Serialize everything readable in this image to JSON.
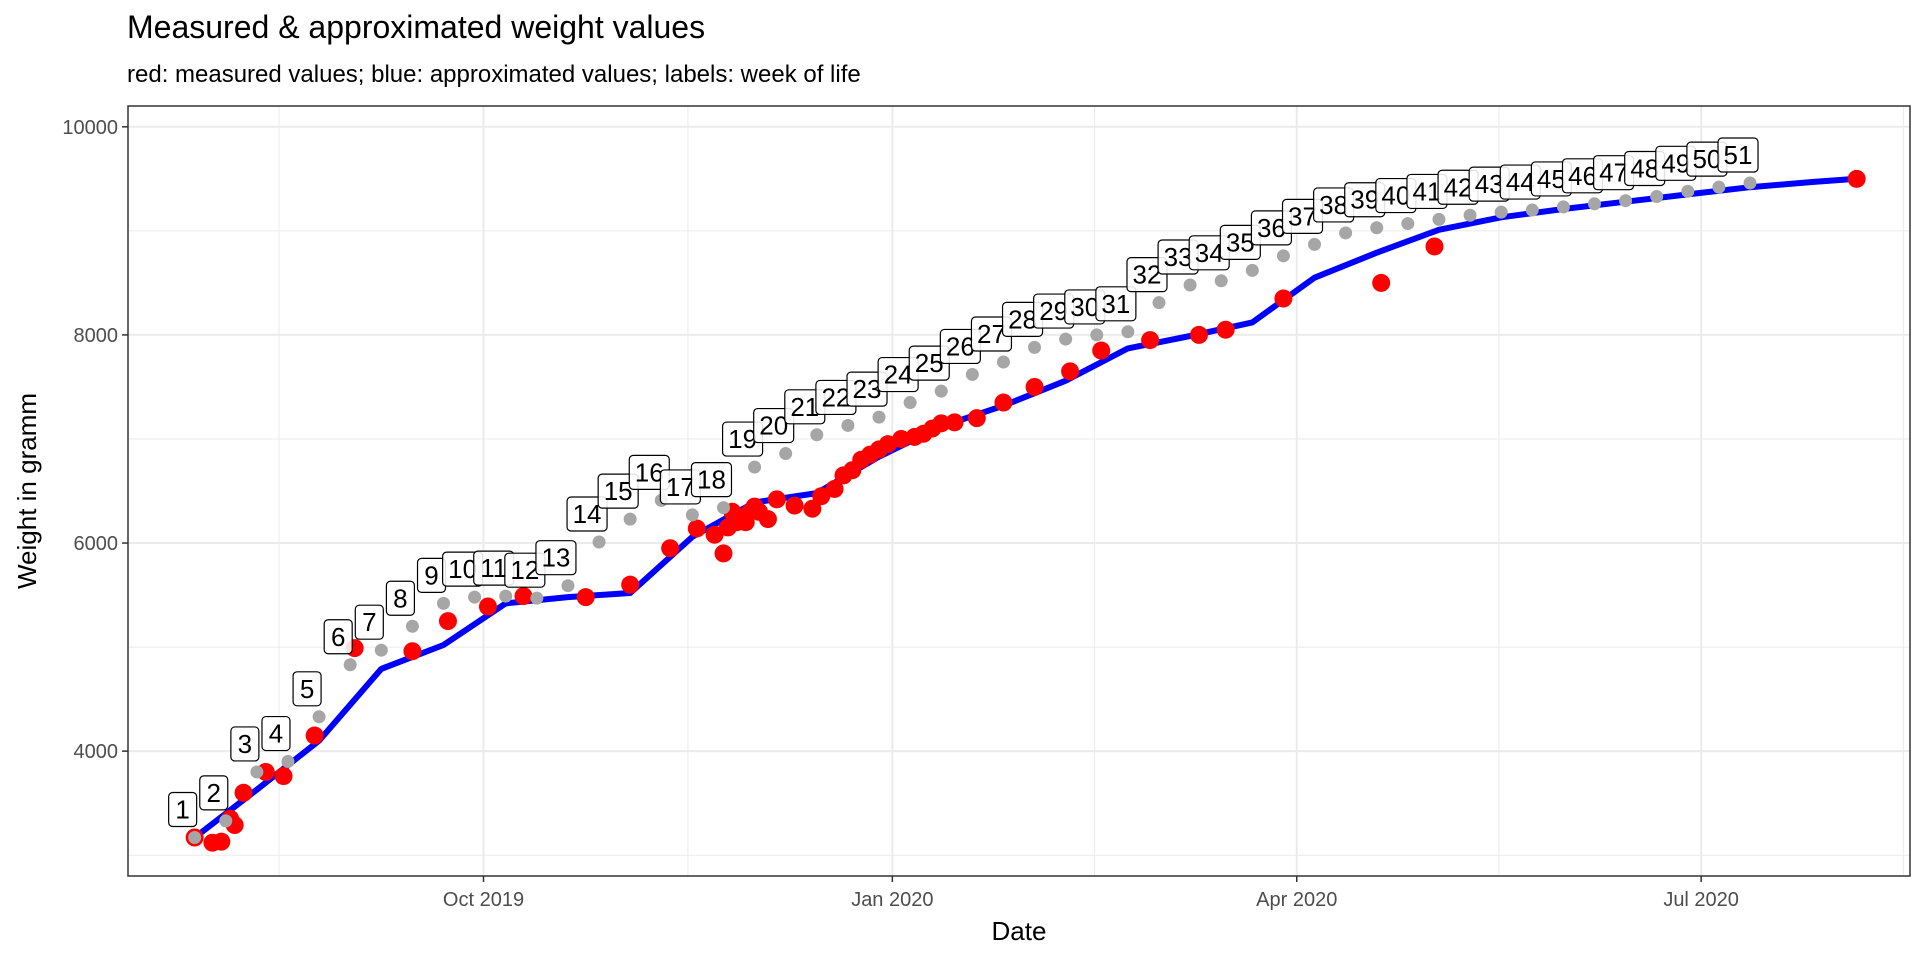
{
  "chart_data": {
    "type": "line",
    "title": "Measured & approximated weight values",
    "subtitle": "red: measured values; blue: approximated values; labels: week of life",
    "xlabel": "Date",
    "ylabel": "Weight in gramm",
    "xlim": [
      "2019-07-13",
      "2020-08-17"
    ],
    "ylim": [
      2800,
      10200
    ],
    "y_ticks": [
      4000,
      6000,
      8000,
      10000
    ],
    "x_ticks": [
      {
        "date": "2019-10-01",
        "label": "Oct 2019"
      },
      {
        "date": "2020-01-01",
        "label": "Jan 2020"
      },
      {
        "date": "2020-04-01",
        "label": "Apr 2020"
      },
      {
        "date": "2020-07-01",
        "label": "Jul 2020"
      }
    ],
    "grid": true,
    "legend": "none",
    "colors": {
      "measured": "#ff0000",
      "approximated": "#0000ff",
      "week_marker": "#a6a6a6",
      "grid": "#ebebeb",
      "panel_border": "#333333"
    },
    "series": [
      {
        "values_kind": "measured",
        "x": [
          "2019-07-28",
          "2019-08-01",
          "2019-08-03",
          "2019-08-05",
          "2019-08-06",
          "2019-08-08",
          "2019-08-13",
          "2019-08-17",
          "2019-08-24",
          "2019-09-02",
          "2019-09-15",
          "2019-09-23",
          "2019-10-02",
          "2019-10-10",
          "2019-10-24",
          "2019-11-03",
          "2019-11-12",
          "2019-11-18",
          "2019-11-22",
          "2019-11-24",
          "2019-11-25",
          "2019-11-26",
          "2019-11-27",
          "2019-11-28",
          "2019-11-29",
          "2019-11-30",
          "2019-12-01",
          "2019-12-02",
          "2019-12-04",
          "2019-12-06",
          "2019-12-10",
          "2019-12-14",
          "2019-12-16",
          "2019-12-19",
          "2019-12-21",
          "2019-12-23",
          "2019-12-25",
          "2019-12-27",
          "2019-12-29",
          "2019-12-31",
          "2020-01-03",
          "2020-01-06",
          "2020-01-08",
          "2020-01-10",
          "2020-01-12",
          "2020-01-15",
          "2020-01-20",
          "2020-01-26",
          "2020-02-02",
          "2020-02-10",
          "2020-02-17",
          "2020-02-28",
          "2020-03-10",
          "2020-03-16",
          "2020-03-29",
          "2020-04-20",
          "2020-05-02",
          "2020-08-05"
        ],
        "y": [
          3170,
          3120,
          3130,
          3350,
          3290,
          3600,
          3800,
          3760,
          4150,
          4990,
          4960,
          5250,
          5390,
          5490,
          5480,
          5600,
          5950,
          6140,
          6080,
          5900,
          6150,
          6300,
          6200,
          6250,
          6200,
          6300,
          6350,
          6300,
          6230,
          6420,
          6360,
          6330,
          6450,
          6520,
          6650,
          6700,
          6800,
          6850,
          6900,
          6950,
          7000,
          7020,
          7050,
          7100,
          7150,
          7160,
          7200,
          7350,
          7500,
          7650,
          7850,
          7950,
          8000,
          8050,
          8350,
          8500,
          8850,
          9500
        ]
      },
      {
        "values_kind": "approximated",
        "x": [
          "2019-07-28",
          "2019-08-11",
          "2019-08-25",
          "2019-09-08",
          "2019-09-22",
          "2019-10-06",
          "2019-10-20",
          "2019-11-03",
          "2019-11-17",
          "2019-12-01",
          "2019-12-15",
          "2019-12-29",
          "2020-01-12",
          "2020-01-26",
          "2020-02-09",
          "2020-02-23",
          "2020-03-08",
          "2020-03-22",
          "2020-04-05",
          "2020-04-19",
          "2020-05-03",
          "2020-05-17",
          "2020-05-31",
          "2020-06-14",
          "2020-06-28",
          "2020-07-12",
          "2020-07-26",
          "2020-08-05"
        ],
        "y": [
          3170,
          3630,
          4100,
          4790,
          5020,
          5420,
          5480,
          5520,
          6060,
          6390,
          6480,
          6830,
          7120,
          7320,
          7560,
          7870,
          7990,
          8120,
          8550,
          8790,
          9010,
          9130,
          9210,
          9280,
          9350,
          9420,
          9470,
          9500
        ]
      }
    ],
    "week_markers": {
      "weeks": [
        "1",
        "2",
        "3",
        "4",
        "5",
        "6",
        "7",
        "8",
        "9",
        "10",
        "11",
        "12",
        "13",
        "14",
        "15",
        "16",
        "17",
        "18",
        "19",
        "20",
        "21",
        "22",
        "23",
        "24",
        "25",
        "26",
        "27",
        "28",
        "29",
        "30",
        "31",
        "32",
        "33",
        "34",
        "35",
        "36",
        "37",
        "38",
        "39",
        "40",
        "41",
        "42",
        "43",
        "44",
        "45",
        "46",
        "47",
        "48",
        "49",
        "50",
        "51"
      ],
      "x": [
        "2019-07-28",
        "2019-08-04",
        "2019-08-11",
        "2019-08-18",
        "2019-08-25",
        "2019-09-01",
        "2019-09-08",
        "2019-09-15",
        "2019-09-22",
        "2019-09-29",
        "2019-10-06",
        "2019-10-13",
        "2019-10-20",
        "2019-10-27",
        "2019-11-03",
        "2019-11-10",
        "2019-11-17",
        "2019-11-24",
        "2019-12-01",
        "2019-12-08",
        "2019-12-15",
        "2019-12-22",
        "2019-12-29",
        "2020-01-05",
        "2020-01-12",
        "2020-01-19",
        "2020-01-26",
        "2020-02-02",
        "2020-02-09",
        "2020-02-16",
        "2020-02-23",
        "2020-03-01",
        "2020-03-08",
        "2020-03-15",
        "2020-03-22",
        "2020-03-29",
        "2020-04-05",
        "2020-04-12",
        "2020-04-19",
        "2020-04-26",
        "2020-05-03",
        "2020-05-10",
        "2020-05-17",
        "2020-05-24",
        "2020-05-31",
        "2020-06-07",
        "2020-06-14",
        "2020-06-21",
        "2020-06-28",
        "2020-07-05",
        "2020-07-12"
      ],
      "y": [
        3170,
        3330,
        3800,
        3900,
        4330,
        4830,
        4970,
        5200,
        5420,
        5480,
        5490,
        5470,
        5590,
        6010,
        6230,
        6410,
        6270,
        6340,
        6730,
        6860,
        7040,
        7130,
        7210,
        7350,
        7460,
        7620,
        7740,
        7880,
        7960,
        8000,
        8030,
        8310,
        8480,
        8520,
        8620,
        8760,
        8870,
        8980,
        9030,
        9070,
        9110,
        9150,
        9180,
        9200,
        9230,
        9260,
        9290,
        9330,
        9380,
        9420,
        9460
      ]
    }
  }
}
